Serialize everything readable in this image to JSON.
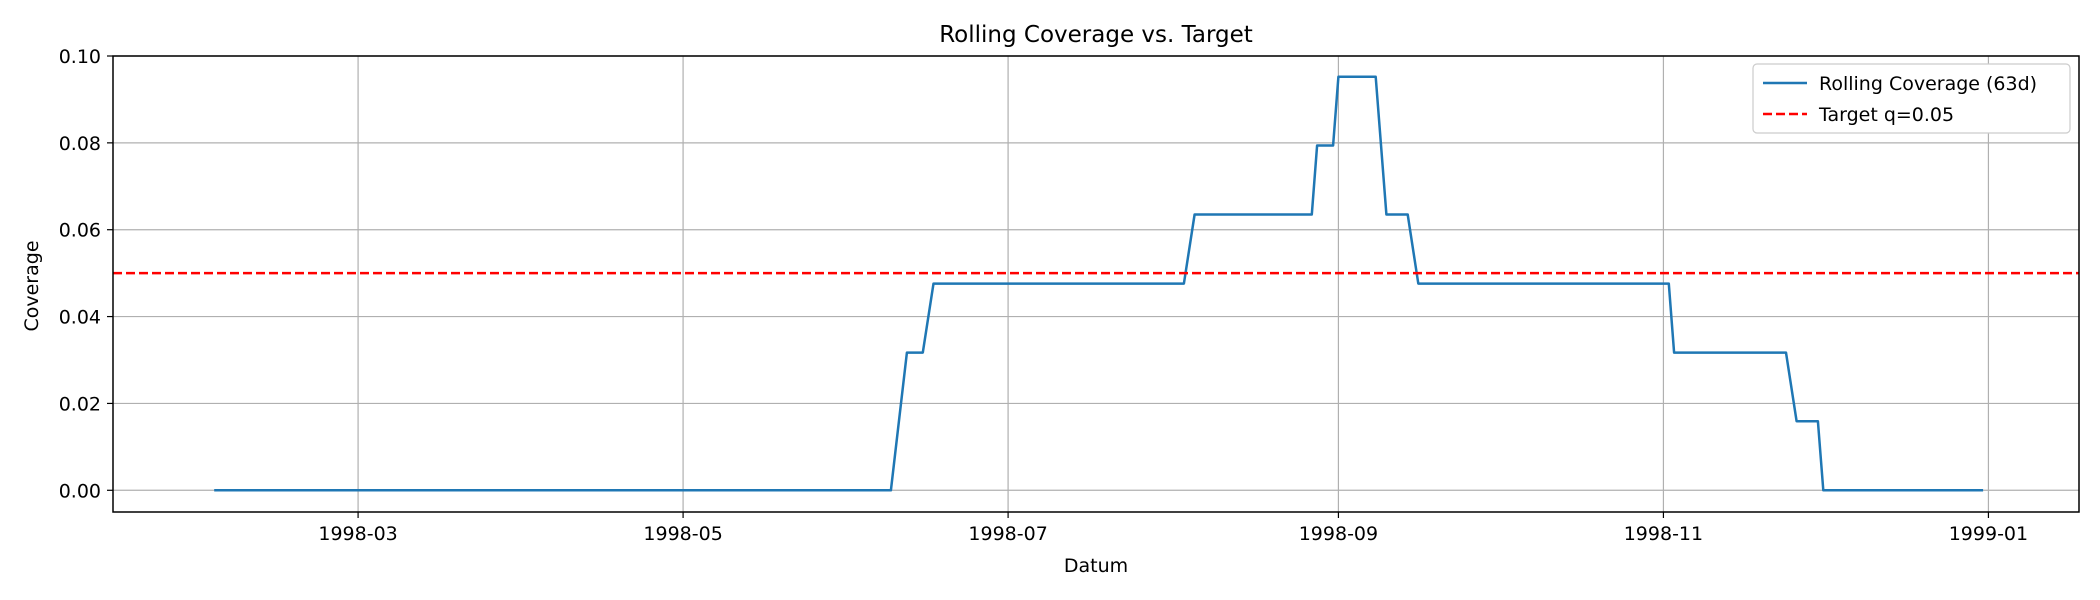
{
  "chart_data": {
    "type": "line",
    "title": "Rolling Coverage vs. Target",
    "xlabel": "Datum",
    "ylabel": "Coverage",
    "xlim": [
      "1998-01-14",
      "1999-01-18"
    ],
    "ylim": [
      -0.005,
      0.1
    ],
    "x_ticks": [
      "1998-03",
      "1998-05",
      "1998-07",
      "1998-09",
      "1998-11",
      "1999-01"
    ],
    "y_ticks": [
      "0.00",
      "0.02",
      "0.04",
      "0.06",
      "0.08",
      "0.10"
    ],
    "grid": true,
    "legend_position": "top-right",
    "series": [
      {
        "name": "Rolling Coverage (63d)",
        "color": "#1f77b4",
        "style": "solid",
        "points": [
          [
            "1998-02-02",
            0.0
          ],
          [
            "1998-06-09",
            0.0
          ],
          [
            "1998-06-12",
            0.0317
          ],
          [
            "1998-06-15",
            0.0317
          ],
          [
            "1998-06-17",
            0.0476
          ],
          [
            "1998-08-03",
            0.0476
          ],
          [
            "1998-08-05",
            0.0635
          ],
          [
            "1998-08-27",
            0.0635
          ],
          [
            "1998-08-28",
            0.0794
          ],
          [
            "1998-08-31",
            0.0794
          ],
          [
            "1998-09-01",
            0.0952
          ],
          [
            "1998-09-08",
            0.0952
          ],
          [
            "1998-09-10",
            0.0635
          ],
          [
            "1998-09-14",
            0.0635
          ],
          [
            "1998-09-16",
            0.0476
          ],
          [
            "1998-11-02",
            0.0476
          ],
          [
            "1998-11-03",
            0.0317
          ],
          [
            "1998-11-24",
            0.0317
          ],
          [
            "1998-11-26",
            0.0159
          ],
          [
            "1998-11-30",
            0.0159
          ],
          [
            "1998-12-01",
            0.0
          ],
          [
            "1998-12-31",
            0.0
          ]
        ]
      },
      {
        "name": "Target q=0.05",
        "color": "#ff0000",
        "style": "dashed",
        "y": 0.05
      }
    ]
  }
}
